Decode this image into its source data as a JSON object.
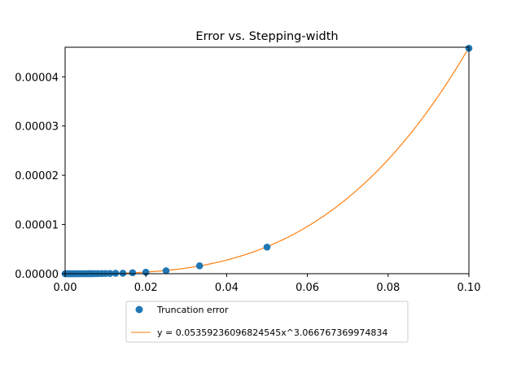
{
  "chart_data": {
    "type": "scatter",
    "title": "Error vs. Stepping-width",
    "xlabel": "",
    "ylabel": "",
    "xlim": [
      0.0,
      0.1
    ],
    "ylim": [
      0.0,
      4.6e-05
    ],
    "x_ticks": [
      0.0,
      0.02,
      0.04,
      0.06,
      0.08,
      0.1
    ],
    "x_tick_labels": [
      "0.00",
      "0.02",
      "0.04",
      "0.06",
      "0.08",
      "0.10"
    ],
    "y_ticks": [
      0.0,
      1e-05,
      2e-05,
      3e-05,
      4e-05
    ],
    "y_tick_labels": [
      "0.00000",
      "0.00001",
      "0.00002",
      "0.00003",
      "0.00004"
    ],
    "grid": false,
    "legend_position": "bottom-center",
    "series": [
      {
        "name": "Truncation error",
        "kind": "scatter",
        "color": "#1f77b4",
        "x": [
          0.1,
          0.05,
          0.0333,
          0.025,
          0.02,
          0.0167,
          0.0143,
          0.0125,
          0.0111,
          0.01,
          0.0091,
          0.0083,
          0.0077,
          0.0071,
          0.0067,
          0.0063,
          0.0059,
          0.0056,
          0.0053,
          0.005,
          0.0045,
          0.004,
          0.0036,
          0.0033,
          0.003,
          0.0027,
          0.0025,
          0.0022,
          0.002,
          0.0018,
          0.0016,
          0.0014,
          0.0012,
          0.001,
          0.0008,
          0.0006,
          0.0004,
          0.0002,
          0.0
        ],
        "y": [
          4.58e-05,
          5.4e-06,
          1.6e-06,
          6e-07,
          3e-07,
          2e-07,
          1e-07,
          1e-07,
          5e-08,
          4e-08,
          3e-08,
          2e-08,
          2e-08,
          1e-08,
          1e-08,
          1e-08,
          1e-08,
          0.0,
          0.0,
          0.0,
          0.0,
          0.0,
          0.0,
          0.0,
          0.0,
          0.0,
          0.0,
          0.0,
          0.0,
          0.0,
          0.0,
          0.0,
          0.0,
          0.0,
          0.0,
          0.0,
          0.0,
          0.0,
          0.0
        ]
      },
      {
        "name": "y = 0.05359236096824545x^3.066767369974834",
        "kind": "line",
        "color": "#ff7f0e",
        "coefficient": 0.05359236096824545,
        "exponent": 3.066767369974834,
        "x_range": [
          0.0,
          0.1
        ]
      }
    ]
  }
}
